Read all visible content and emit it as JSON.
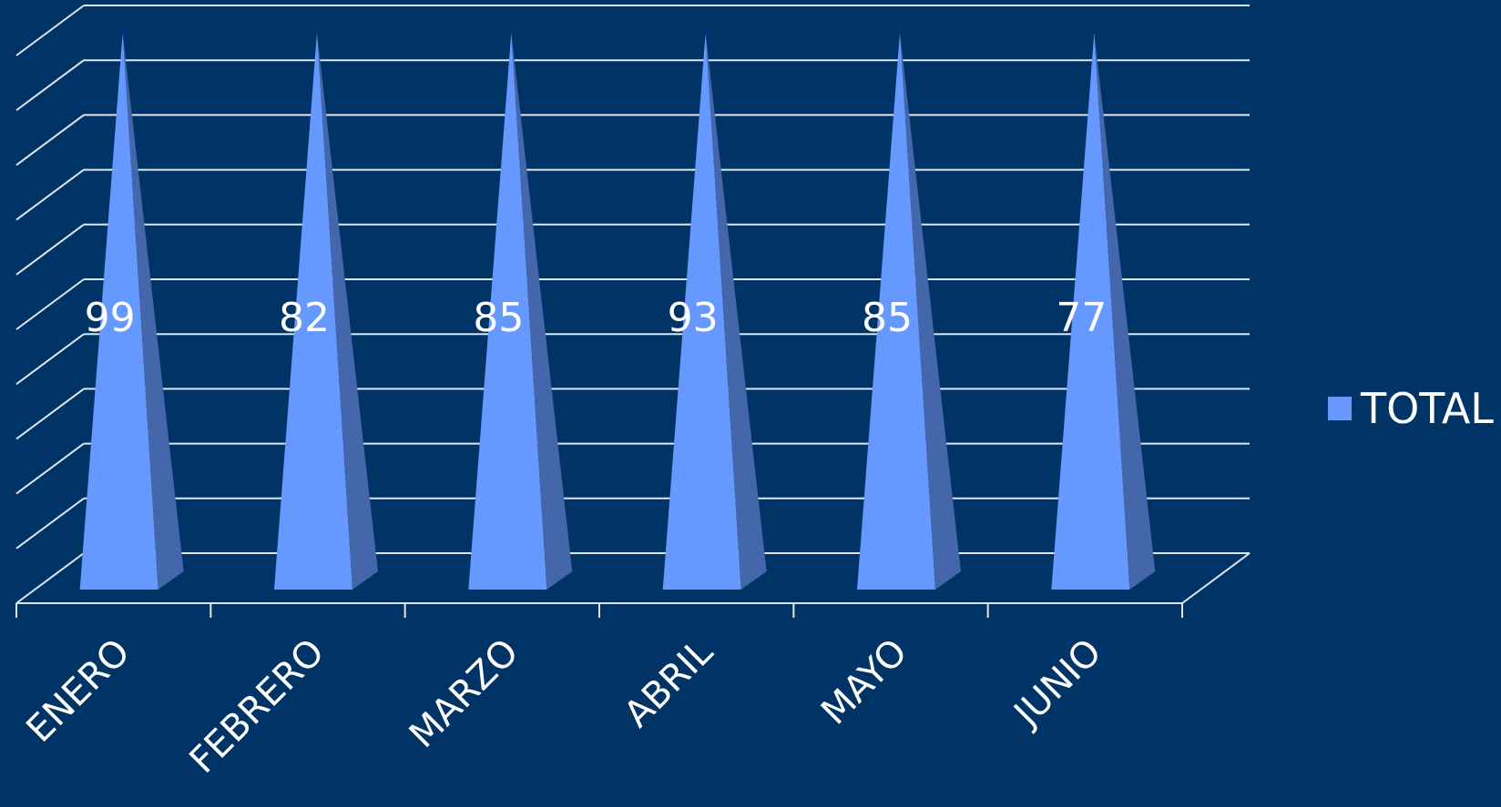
{
  "colors": {
    "background": "#003366",
    "series_front": "#6699ff",
    "series_side": "#4466aa",
    "grid": "#dfe6f0",
    "text": "#ffffff"
  },
  "chart_data": {
    "type": "bar",
    "shape": "pyramid-3d",
    "categories": [
      "ENERO",
      "FEBRERO",
      "MARZO",
      "ABRIL",
      "MAYO",
      "JUNIO"
    ],
    "series": [
      {
        "name": "TOTAL",
        "values": [
          99,
          82,
          85,
          93,
          85,
          77
        ]
      }
    ],
    "title": "",
    "xlabel": "",
    "ylabel": "",
    "ylim": [
      0,
      100
    ],
    "grid": true,
    "legend": "right"
  }
}
